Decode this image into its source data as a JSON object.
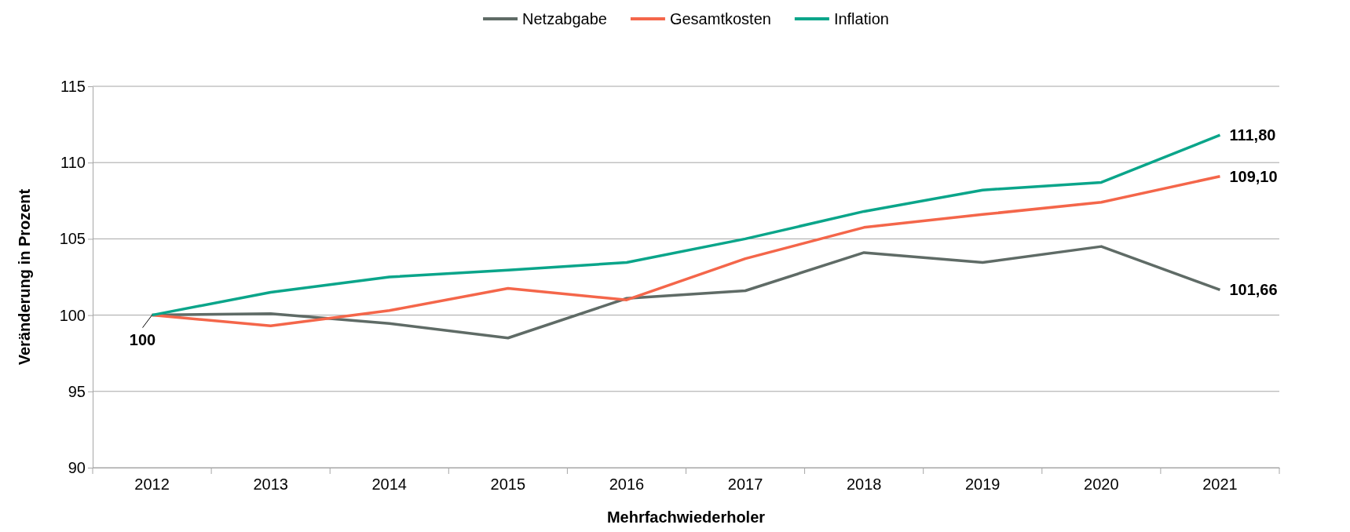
{
  "chart_data": {
    "type": "line",
    "xlabel": "Mehrfachwiederholer",
    "ylabel": "Veränderung in Prozent",
    "categories": [
      "2012",
      "2013",
      "2014",
      "2015",
      "2016",
      "2017",
      "2018",
      "2019",
      "2020",
      "2021"
    ],
    "series": [
      {
        "name": "Netzabgabe",
        "color": "#5f6b66",
        "values": [
          100,
          100.1,
          99.45,
          98.5,
          101.1,
          101.6,
          104.1,
          103.45,
          104.5,
          101.66
        ],
        "value_labels": [
          null,
          null,
          null,
          null,
          null,
          null,
          null,
          null,
          null,
          "101,66"
        ]
      },
      {
        "name": "Gesamtkosten",
        "color": "#f4664a",
        "values": [
          100,
          99.3,
          100.3,
          101.75,
          101.0,
          103.7,
          105.75,
          106.6,
          107.4,
          109.1
        ],
        "value_labels": [
          null,
          null,
          null,
          null,
          null,
          null,
          null,
          null,
          null,
          "109,10"
        ]
      },
      {
        "name": "Inflation",
        "color": "#0aa58a",
        "values": [
          100,
          101.5,
          102.5,
          102.95,
          103.45,
          105.0,
          106.8,
          108.2,
          108.7,
          111.8
        ],
        "value_labels": [
          null,
          null,
          null,
          null,
          null,
          null,
          null,
          null,
          null,
          "111,80"
        ]
      }
    ],
    "annotations": [
      {
        "text": "100",
        "x": "2012",
        "y": 100
      }
    ],
    "ylim": [
      90,
      115
    ],
    "yticks": [
      90,
      95,
      100,
      105,
      110,
      115
    ],
    "grid": "y",
    "legend": "top",
    "marker": "none",
    "line_style": "solid"
  }
}
